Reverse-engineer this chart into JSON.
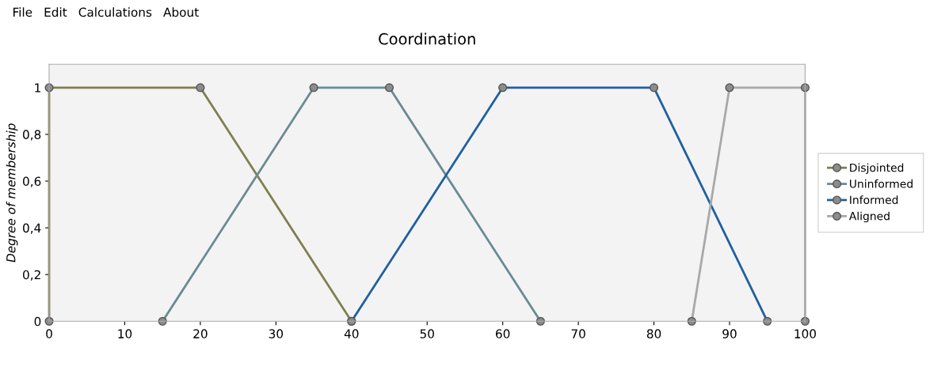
{
  "chart_data": {
    "type": "line",
    "title": "Coordination",
    "ylabel": "Degree of membership",
    "annotations": [
      "File",
      "Edit",
      "Calculations",
      "About"
    ],
    "xlim": [
      0,
      100
    ],
    "xticks": [
      0,
      10,
      20,
      30,
      40,
      50,
      60,
      70,
      80,
      90,
      100
    ],
    "ylim": [
      0,
      1.1
    ],
    "yticks": [
      0,
      {
        "value": 0.2,
        "label": "0,2"
      },
      {
        "value": 0.4,
        "label": "0,4"
      },
      {
        "value": 0.6,
        "label": "0,6"
      },
      {
        "value": 0.8,
        "label": "0,8"
      },
      1
    ],
    "grid": false,
    "legend": "right",
    "marker": "circle",
    "line_style": "solid",
    "series": [
      {
        "name": "Disjointed",
        "color": "#7f7f50",
        "x": [
          0,
          0,
          20,
          40
        ],
        "values": [
          0,
          1,
          1,
          0
        ]
      },
      {
        "name": "Uninformed",
        "color": "#6a8a94",
        "x": [
          15,
          35,
          45,
          65
        ],
        "values": [
          0,
          1,
          1,
          0
        ]
      },
      {
        "name": "Informed",
        "color": "#1f5fa0",
        "x": [
          40,
          60,
          80,
          95
        ],
        "values": [
          0,
          1,
          1,
          0
        ]
      },
      {
        "name": "Aligned",
        "color": "#a8a8a8",
        "x": [
          85,
          90,
          100,
          100
        ],
        "values": [
          0,
          1,
          1,
          0
        ]
      }
    ]
  }
}
